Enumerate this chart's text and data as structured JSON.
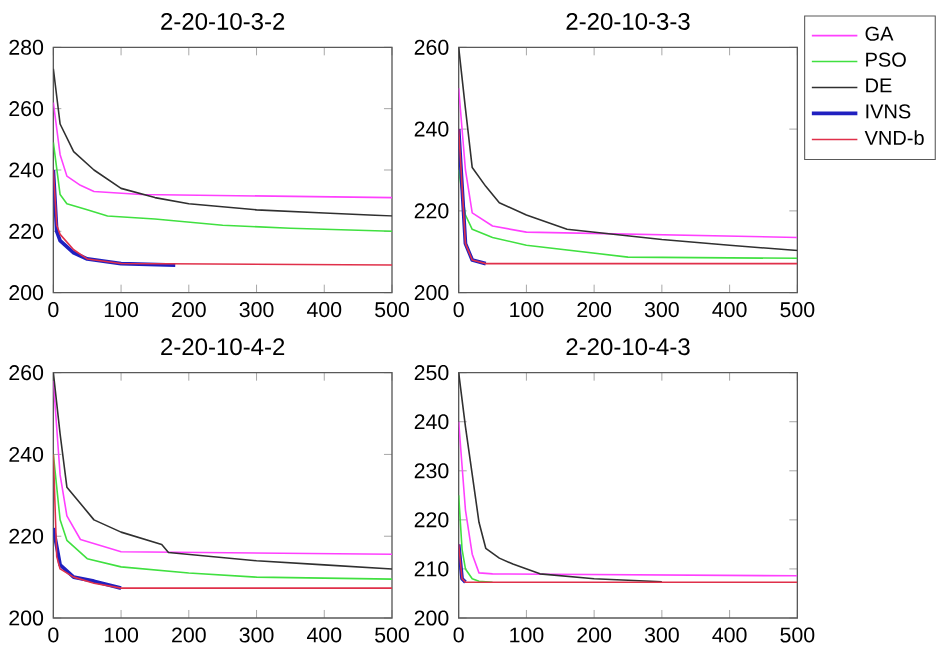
{
  "chart_data": [
    {
      "type": "line",
      "title": "2-20-10-3-2",
      "xlim": [
        0,
        500
      ],
      "ylim": [
        200,
        280
      ],
      "xticks": [
        0,
        100,
        200,
        300,
        400,
        500
      ],
      "yticks": [
        200,
        220,
        240,
        260,
        280
      ],
      "grid": false,
      "legend": false,
      "series": [
        {
          "color": "#ff40ff",
          "x": [
            0,
            10,
            20,
            40,
            60,
            130,
            500
          ],
          "values": [
            262,
            245,
            238,
            235,
            233,
            232,
            231
          ]
        },
        {
          "color": "#40e040",
          "x": [
            0,
            10,
            20,
            50,
            80,
            150,
            250,
            350,
            500
          ],
          "values": [
            249,
            232,
            229,
            227,
            225,
            224,
            222,
            221,
            220
          ]
        },
        {
          "color": "#303030",
          "x": [
            0,
            10,
            30,
            60,
            100,
            150,
            200,
            300,
            400,
            500
          ],
          "values": [
            273,
            255,
            246,
            240,
            234,
            231,
            229,
            227,
            226,
            225
          ]
        },
        {
          "color": "#2020c0",
          "x": [
            0,
            5,
            10,
            30,
            50,
            100,
            180
          ],
          "values": [
            240,
            220,
            217,
            213,
            211,
            209.5,
            209
          ]
        },
        {
          "color": "#e0304a",
          "x": [
            0,
            5,
            10,
            30,
            50,
            100,
            500
          ],
          "values": [
            240,
            222,
            219,
            214,
            211,
            209.5,
            209
          ]
        }
      ]
    },
    {
      "type": "line",
      "title": "2-20-10-3-3",
      "xlim": [
        0,
        500
      ],
      "ylim": [
        200,
        260
      ],
      "xticks": [
        0,
        100,
        200,
        300,
        400,
        500
      ],
      "yticks": [
        200,
        220,
        240,
        260
      ],
      "grid": false,
      "legend": "right",
      "series": [
        {
          "name": "GA",
          "color": "#ff40ff",
          "x": [
            0,
            10,
            20,
            50,
            100,
            500
          ],
          "values": [
            250,
            230,
            219.5,
            216.3,
            214.8,
            213.5
          ]
        },
        {
          "name": "PSO",
          "color": "#40e040",
          "x": [
            0,
            10,
            20,
            50,
            100,
            250,
            500
          ],
          "values": [
            230,
            219,
            215.5,
            213.5,
            211.6,
            208.7,
            208.4
          ]
        },
        {
          "name": "DE",
          "color": "#303030",
          "x": [
            0,
            10,
            20,
            40,
            60,
            100,
            160,
            300,
            400,
            500
          ],
          "values": [
            260,
            245,
            230.6,
            226,
            222,
            219,
            215.5,
            213,
            211.6,
            210.3
          ]
        },
        {
          "name": "IVNS",
          "color": "#2020c0",
          "x": [
            0,
            10,
            20,
            40
          ],
          "values": [
            240,
            212,
            208,
            207.1
          ]
        },
        {
          "name": "VND-b",
          "color": "#e0304a",
          "x": [
            0,
            10,
            20,
            40,
            500
          ],
          "values": [
            240,
            212,
            208,
            207.1,
            207.1
          ]
        }
      ]
    },
    {
      "type": "line",
      "title": "2-20-10-4-2",
      "xlim": [
        0,
        500
      ],
      "ylim": [
        200,
        260
      ],
      "xticks": [
        0,
        100,
        200,
        300,
        400,
        500
      ],
      "yticks": [
        200,
        220,
        240,
        260
      ],
      "grid": false,
      "legend": false,
      "series": [
        {
          "color": "#ff40ff",
          "x": [
            0,
            10,
            20,
            40,
            100,
            500
          ],
          "values": [
            258,
            235,
            225,
            219.2,
            216.2,
            215.6
          ]
        },
        {
          "color": "#40e040",
          "x": [
            0,
            10,
            20,
            50,
            100,
            200,
            300,
            500
          ],
          "values": [
            240,
            224,
            219,
            214.5,
            212.5,
            211,
            210,
            209.5
          ]
        },
        {
          "color": "#303030",
          "x": [
            0,
            10,
            20,
            40,
            60,
            100,
            160,
            170,
            300,
            400,
            500
          ],
          "values": [
            260,
            245,
            232,
            228,
            224,
            221,
            218,
            216,
            214,
            213,
            212
          ]
        },
        {
          "color": "#2020c0",
          "x": [
            0,
            10,
            30,
            60,
            100
          ],
          "values": [
            222,
            213,
            210,
            209,
            207.3
          ]
        },
        {
          "color": "#e0304a",
          "x": [
            0,
            5,
            10,
            30,
            60,
            100,
            500
          ],
          "values": [
            240,
            215,
            212,
            210,
            208.5,
            207.3,
            207.3
          ]
        }
      ]
    },
    {
      "type": "line",
      "title": "2-20-10-4-3",
      "xlim": [
        0,
        500
      ],
      "ylim": [
        200,
        250
      ],
      "xticks": [
        0,
        100,
        200,
        300,
        400,
        500
      ],
      "yticks": [
        200,
        210,
        220,
        230,
        240,
        250
      ],
      "grid": false,
      "legend": false,
      "series": [
        {
          "color": "#ff40ff",
          "x": [
            0,
            10,
            20,
            30,
            50,
            500
          ],
          "values": [
            240,
            222,
            213,
            209.2,
            209,
            208.6
          ]
        },
        {
          "color": "#40e040",
          "x": [
            0,
            5,
            10,
            20,
            30,
            50
          ],
          "values": [
            225,
            214,
            210,
            208,
            207.5,
            207.3
          ]
        },
        {
          "color": "#303030",
          "x": [
            0,
            10,
            30,
            40,
            60,
            80,
            120,
            200,
            300
          ],
          "values": [
            250,
            239,
            219.5,
            214.2,
            212.2,
            211,
            209,
            208,
            207.4
          ]
        },
        {
          "color": "#2020c0",
          "x": [
            0,
            5,
            10
          ],
          "values": [
            215,
            208,
            207.3
          ]
        },
        {
          "color": "#e0304a",
          "x": [
            0,
            5,
            10,
            500
          ],
          "values": [
            215,
            208,
            207.3,
            207.3
          ]
        }
      ]
    }
  ]
}
